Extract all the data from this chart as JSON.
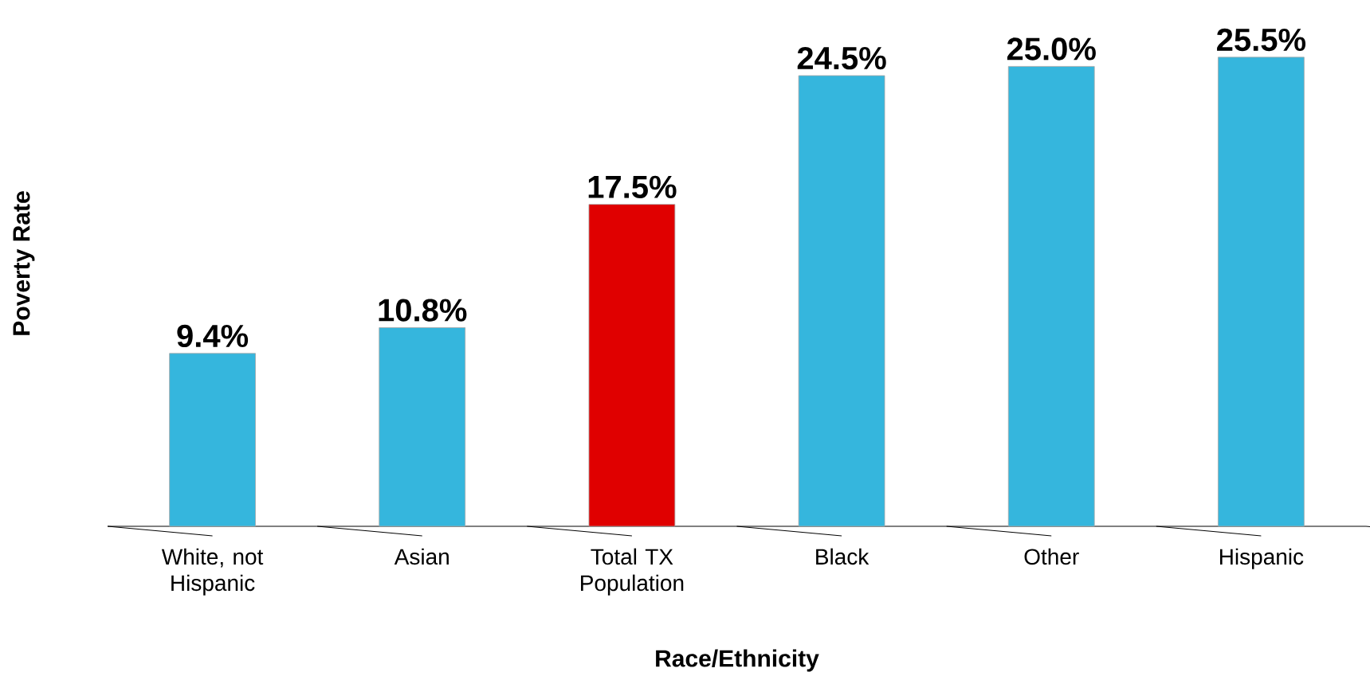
{
  "chart_data": {
    "type": "bar",
    "xlabel": "Race/Ethnicity",
    "ylabel": "Poverty Rate",
    "categories": [
      "White, not Hispanic",
      "Asian",
      "Total TX Population",
      "Black",
      "Other",
      "Hispanic"
    ],
    "values": [
      9.4,
      10.8,
      17.5,
      24.5,
      25.0,
      25.5
    ],
    "colors": [
      "#35b6dd",
      "#35b6dd",
      "#e00000",
      "#35b6dd",
      "#35b6dd",
      "#35b6dd"
    ],
    "value_labels": [
      "9.4%",
      "10.8%",
      "17.5%",
      "24.5%",
      "25.0%",
      "25.5%"
    ]
  }
}
